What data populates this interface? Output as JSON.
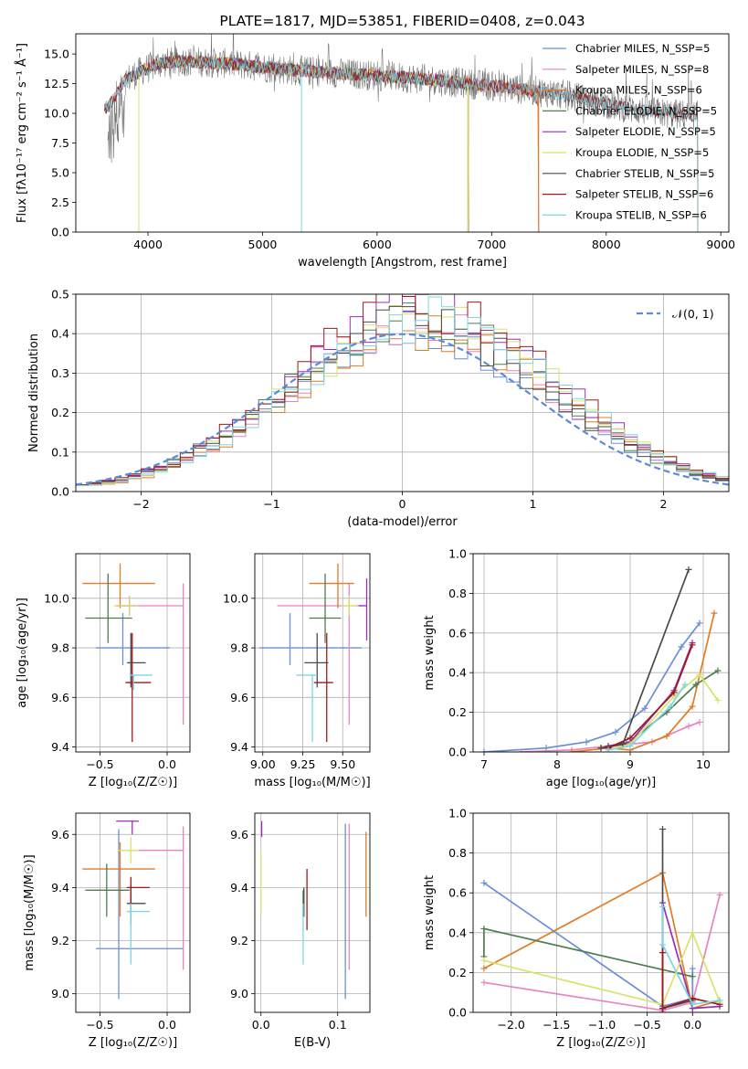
{
  "figure_title": "PLATE=1817, MJD=53851, FIBERID=0408, z=0.043",
  "palette": [
    "#6a8fd8",
    "#e884c0",
    "#e07b28",
    "#4f7d4f",
    "#9a2fb8",
    "#d9e26a",
    "#4a4a4a",
    "#9c1a1a",
    "#7fd6df"
  ],
  "chart_data": [
    {
      "type": "line",
      "panel": "spectrum",
      "title": "PLATE=1817, MJD=53851, FIBERID=0408, z=0.043",
      "xlabel": "wavelength [Angstrom, rest frame]",
      "ylabel": "Flux [fλ10⁻¹⁷ erg cm⁻² s⁻¹ Å⁻¹]",
      "xlim": [
        3370,
        9070
      ],
      "ylim": [
        0,
        16.7
      ],
      "xticks": [
        "4000",
        "5000",
        "6000",
        "7000",
        "8000",
        "9000"
      ],
      "yticks": [
        "0.0",
        "2.5",
        "5.0",
        "7.5",
        "10.0",
        "12.5",
        "15.0"
      ],
      "legend_position": "top-right",
      "legend": [
        "Chabrier MILES, N_SSP=5",
        "Salpeter MILES, N_SSP=8",
        "Kroupa MILES, N_SSP=6",
        "Chabrier ELODIE, N_SSP=5",
        "Salpeter ELODIE, N_SSP=5",
        "Kroupa ELODIE, N_SSP=5",
        "Chabrier STELIB, N_SSP=5",
        "Salpeter STELIB, N_SSP=6",
        "Kroupa STELIB, N_SSP=6"
      ],
      "continuum": {
        "x": [
          3650,
          3800,
          3950,
          4100,
          4300,
          4500,
          4700,
          4900,
          5100,
          5300,
          5500,
          5800,
          6100,
          6400,
          6700,
          7000,
          7300,
          7600,
          7900,
          8200,
          8500,
          8800
        ],
        "y": [
          10.5,
          12.8,
          13.6,
          14.2,
          14.4,
          14.3,
          14.2,
          14.0,
          13.8,
          13.6,
          13.5,
          13.3,
          13.1,
          12.9,
          12.6,
          12.3,
          12.0,
          11.6,
          11.0,
          10.4,
          10.0,
          9.8
        ]
      },
      "series_extent": [
        {
          "name": "Chabrier MILES, N_SSP=5",
          "x_range": [
            3620,
            7410
          ]
        },
        {
          "name": "Salpeter MILES, N_SSP=8",
          "x_range": [
            3620,
            7410
          ]
        },
        {
          "name": "Kroupa MILES, N_SSP=6",
          "x_range": [
            3620,
            7410
          ]
        },
        {
          "name": "Chabrier ELODIE, N_SSP=5",
          "x_range": [
            3900,
            6800
          ]
        },
        {
          "name": "Salpeter ELODIE, N_SSP=5",
          "x_range": [
            3900,
            6800
          ]
        },
        {
          "name": "Kroupa ELODIE, N_SSP=5",
          "x_range": [
            3900,
            6800
          ]
        },
        {
          "name": "Chabrier STELIB, N_SSP=5",
          "x_range": [
            3620,
            8800
          ]
        },
        {
          "name": "Salpeter STELIB, N_SSP=6",
          "x_range": [
            3620,
            8800
          ]
        },
        {
          "name": "Kroupa STELIB, N_SSP=6",
          "x_range": [
            3620,
            8800
          ]
        }
      ]
    },
    {
      "type": "histogram",
      "panel": "residuals",
      "xlabel": "(data-model)/error",
      "ylabel": "Normed distribution",
      "xlim": [
        -2.5,
        2.5
      ],
      "ylim": [
        0,
        0.5
      ],
      "xticks": [
        "−2",
        "−1",
        "0",
        "1",
        "2"
      ],
      "yticks": [
        "0.0",
        "0.1",
        "0.2",
        "0.3",
        "0.4",
        "0.5"
      ],
      "legend_position": "top-right",
      "reference_curve": {
        "name": "N(0,1)",
        "label": "𝒩(0, 1)",
        "mean": 0,
        "sigma": 1,
        "style": "dashed"
      },
      "bin_width": 0.1,
      "series": [
        {
          "name": "Chabrier MILES, N_SSP=5",
          "peak": 0.41
        },
        {
          "name": "Salpeter MILES, N_SSP=8",
          "peak": 0.42
        },
        {
          "name": "Kroupa MILES, N_SSP=6",
          "peak": 0.41
        },
        {
          "name": "Chabrier ELODIE, N_SSP=5",
          "peak": 0.43
        },
        {
          "name": "Salpeter ELODIE, N_SSP=5",
          "peak": 0.47
        },
        {
          "name": "Kroupa ELODIE, N_SSP=5",
          "peak": 0.45
        },
        {
          "name": "Chabrier STELIB, N_SSP=5",
          "peak": 0.42
        },
        {
          "name": "Salpeter STELIB, N_SSP=6",
          "peak": 0.47
        },
        {
          "name": "Kroupa STELIB, N_SSP=6",
          "peak": 0.44
        }
      ]
    },
    {
      "type": "errorbar",
      "panel": "age-vs-Z",
      "xlabel": "Z [log₁₀(Z/Z☉)]",
      "ylabel": "age  [log₁₀(age/yr)]",
      "xlim": [
        -0.68,
        0.17
      ],
      "ylim": [
        9.38,
        10.18
      ],
      "xticks": [
        "−0.5",
        "0.0"
      ],
      "yticks": [
        "9.4",
        "9.6",
        "9.8",
        "10.0"
      ],
      "points": [
        {
          "series": 0,
          "x": -0.33,
          "y": 9.8,
          "xerr": [
            0.2,
            0.35
          ],
          "yerr": [
            0.07,
            0.14
          ]
        },
        {
          "series": 1,
          "x": 0.12,
          "y": 9.97,
          "xerr": [
            0.45,
            0.0
          ],
          "yerr": [
            0.48,
            0.09
          ]
        },
        {
          "series": 2,
          "x": -0.35,
          "y": 10.06,
          "xerr": [
            0.28,
            0.26
          ],
          "yerr": [
            0.1,
            0.08
          ]
        },
        {
          "series": 3,
          "x": -0.44,
          "y": 9.92,
          "xerr": [
            0.17,
            0.18
          ],
          "yerr": [
            0.1,
            0.18
          ]
        },
        {
          "series": 4,
          "x": -0.28,
          "y": 9.97,
          "xerr": [
            0.1,
            0.05
          ],
          "yerr": [
            0.04,
            0.04
          ]
        },
        {
          "series": 5,
          "x": -0.28,
          "y": 9.97,
          "xerr": [
            0.12,
            0.06
          ],
          "yerr": [
            0.04,
            0.04
          ]
        },
        {
          "series": 6,
          "x": -0.27,
          "y": 9.74,
          "xerr": [
            0.03,
            0.11
          ],
          "yerr": [
            0.1,
            0.12
          ]
        },
        {
          "series": 7,
          "x": -0.26,
          "y": 9.66,
          "xerr": [
            0.05,
            0.14
          ],
          "yerr": [
            0.24,
            0.2
          ]
        },
        {
          "series": 8,
          "x": -0.25,
          "y": 9.69,
          "xerr": [
            0.03,
            0.14
          ],
          "yerr": [
            0.06,
            0.0
          ]
        }
      ]
    },
    {
      "type": "errorbar",
      "panel": "age-vs-mass",
      "xlabel": "mass [log₁₀(M/M☉)]",
      "ylabel": "",
      "xlim": [
        8.95,
        9.67
      ],
      "ylim": [
        9.38,
        10.18
      ],
      "xticks": [
        "9.00",
        "9.25",
        "9.50"
      ],
      "yticks": [
        "9.4",
        "9.6",
        "9.8",
        "10.0"
      ],
      "points": [
        {
          "series": 0,
          "x": 9.17,
          "y": 9.8,
          "xerr": [
            0.19,
            0.45
          ],
          "yerr": [
            0.07,
            0.14
          ]
        },
        {
          "series": 1,
          "x": 9.54,
          "y": 9.97,
          "xerr": [
            0.45,
            0.09
          ],
          "yerr": [
            0.48,
            0.09
          ]
        },
        {
          "series": 2,
          "x": 9.47,
          "y": 10.06,
          "xerr": [
            0.18,
            0.1
          ],
          "yerr": [
            0.1,
            0.08
          ]
        },
        {
          "series": 3,
          "x": 9.39,
          "y": 9.92,
          "xerr": [
            0.1,
            0.1
          ],
          "yerr": [
            0.1,
            0.18
          ]
        },
        {
          "series": 4,
          "x": 9.65,
          "y": 9.97,
          "xerr": [
            0.05,
            0.0
          ],
          "yerr": [
            0.14,
            0.11
          ]
        },
        {
          "series": 5,
          "x": 9.54,
          "y": 9.97,
          "xerr": [
            0.05,
            0.05
          ],
          "yerr": [
            0.04,
            0.04
          ]
        },
        {
          "series": 6,
          "x": 9.34,
          "y": 9.74,
          "xerr": [
            0.08,
            0.07
          ],
          "yerr": [
            0.1,
            0.12
          ]
        },
        {
          "series": 7,
          "x": 9.4,
          "y": 9.66,
          "xerr": [
            0.08,
            0.04
          ],
          "yerr": [
            0.24,
            0.2
          ]
        },
        {
          "series": 8,
          "x": 9.31,
          "y": 9.69,
          "xerr": [
            0.1,
            0.03
          ],
          "yerr": [
            0.27,
            0.0
          ]
        }
      ]
    },
    {
      "type": "line",
      "panel": "mass-weight-vs-age",
      "xlabel": "age  [log₁₀(age/yr)]",
      "ylabel": "mass weight",
      "xlim": [
        6.85,
        10.35
      ],
      "ylim": [
        0,
        1.0
      ],
      "xticks": [
        "7",
        "8",
        "9",
        "10"
      ],
      "yticks": [
        "0.0",
        "0.2",
        "0.4",
        "0.6",
        "0.8",
        "1.0"
      ],
      "series": [
        {
          "index": 0,
          "x": [
            7.0,
            7.85,
            8.4,
            8.8,
            9.2,
            9.7,
            9.95
          ],
          "y": [
            0.0,
            0.02,
            0.05,
            0.1,
            0.22,
            0.53,
            0.65
          ]
        },
        {
          "index": 1,
          "x": [
            7.5,
            8.2,
            8.7,
            9.3,
            9.8,
            9.95
          ],
          "y": [
            0.0,
            0.01,
            0.03,
            0.05,
            0.13,
            0.15
          ]
        },
        {
          "index": 2,
          "x": [
            8.2,
            8.7,
            9.0,
            9.5,
            9.85,
            10.15
          ],
          "y": [
            0.0,
            0.02,
            0.01,
            0.08,
            0.23,
            0.7
          ]
        },
        {
          "index": 3,
          "x": [
            8.6,
            8.95,
            9.5,
            9.9,
            10.2
          ],
          "y": [
            0.02,
            0.04,
            0.2,
            0.34,
            0.41
          ]
        },
        {
          "index": 4,
          "x": [
            8.7,
            9.0,
            9.6,
            9.85
          ],
          "y": [
            0.03,
            0.05,
            0.31,
            0.55
          ]
        },
        {
          "index": 5,
          "x": [
            8.7,
            9.0,
            9.6,
            9.95,
            10.2
          ],
          "y": [
            0.01,
            0.04,
            0.28,
            0.39,
            0.26
          ]
        },
        {
          "index": 6,
          "x": [
            8.6,
            8.9,
            9.8
          ],
          "y": [
            0.02,
            0.04,
            0.92
          ]
        },
        {
          "index": 7,
          "x": [
            8.7,
            9.0,
            9.6,
            9.85
          ],
          "y": [
            0.02,
            0.07,
            0.3,
            0.54
          ]
        },
        {
          "index": 8,
          "x": [
            8.7,
            9.0,
            9.55,
            9.75
          ],
          "y": [
            0.01,
            0.03,
            0.23,
            0.34
          ]
        }
      ]
    },
    {
      "type": "errorbar",
      "panel": "mass-vs-Z",
      "xlabel": "Z [log₁₀(Z/Z☉)]",
      "ylabel": "mass [log₁₀(M/M☉)]",
      "xlim": [
        -0.68,
        0.17
      ],
      "ylim": [
        8.93,
        9.68
      ],
      "xticks": [
        "−0.5",
        "0.0"
      ],
      "yticks": [
        "9.0",
        "9.2",
        "9.4",
        "9.6"
      ],
      "points": [
        {
          "series": 0,
          "x": -0.36,
          "y": 9.17,
          "xerr": [
            0.17,
            0.48
          ],
          "yerr": [
            0.19,
            0.45
          ]
        },
        {
          "series": 1,
          "x": 0.12,
          "y": 9.54,
          "xerr": [
            0.42,
            0.0
          ],
          "yerr": [
            0.45,
            0.09
          ]
        },
        {
          "series": 2,
          "x": -0.35,
          "y": 9.47,
          "xerr": [
            0.28,
            0.26
          ],
          "yerr": [
            0.18,
            0.1
          ]
        },
        {
          "series": 3,
          "x": -0.45,
          "y": 9.39,
          "xerr": [
            0.16,
            0.17
          ],
          "yerr": [
            0.1,
            0.1
          ]
        },
        {
          "series": 4,
          "x": -0.26,
          "y": 9.65,
          "xerr": [
            0.12,
            0.05
          ],
          "yerr": [
            0.05,
            0.0
          ]
        },
        {
          "series": 5,
          "x": -0.27,
          "y": 9.54,
          "xerr": [
            0.1,
            0.06
          ],
          "yerr": [
            0.05,
            0.05
          ]
        },
        {
          "series": 6,
          "x": -0.27,
          "y": 9.34,
          "xerr": [
            0.03,
            0.11
          ],
          "yerr": [
            0.08,
            0.07
          ]
        },
        {
          "series": 7,
          "x": -0.27,
          "y": 9.4,
          "xerr": [
            0.03,
            0.14
          ],
          "yerr": [
            0.08,
            0.04
          ]
        },
        {
          "series": 8,
          "x": -0.27,
          "y": 9.31,
          "xerr": [
            0.03,
            0.14
          ],
          "yerr": [
            0.2,
            0.03
          ]
        }
      ]
    },
    {
      "type": "errorbar",
      "panel": "mass-vs-EBV",
      "xlabel": "E(B-V)",
      "ylabel": "",
      "xlim": [
        -0.008,
        0.142
      ],
      "ylim": [
        8.93,
        9.68
      ],
      "xticks": [
        "0.0",
        "0.1"
      ],
      "yticks": [
        "9.0",
        "9.2",
        "9.4",
        "9.6"
      ],
      "points": [
        {
          "series": 0,
          "x": 0.11,
          "y": 9.17,
          "xerr": [
            0,
            0
          ],
          "yerr": [
            0.19,
            0.47
          ]
        },
        {
          "series": 1,
          "x": 0.115,
          "y": 9.54,
          "xerr": [
            0,
            0
          ],
          "yerr": [
            0.45,
            0.1
          ]
        },
        {
          "series": 2,
          "x": 0.137,
          "y": 9.47,
          "xerr": [
            0,
            0
          ],
          "yerr": [
            0.18,
            0.14
          ]
        },
        {
          "series": 3,
          "x": 0.055,
          "y": 9.39,
          "xerr": [
            0,
            0
          ],
          "yerr": [
            0.1,
            0.0
          ]
        },
        {
          "series": 4,
          "x": 0.001,
          "y": 9.65,
          "xerr": [
            0,
            0
          ],
          "yerr": [
            0.06,
            0.0
          ]
        },
        {
          "series": 5,
          "x": 0.0,
          "y": 9.54,
          "xerr": [
            0,
            0
          ],
          "yerr": [
            0.24,
            0.0
          ]
        },
        {
          "series": 6,
          "x": 0.056,
          "y": 9.34,
          "xerr": [
            0,
            0
          ],
          "yerr": [
            0.05,
            0.06
          ]
        },
        {
          "series": 7,
          "x": 0.06,
          "y": 9.4,
          "xerr": [
            0,
            0
          ],
          "yerr": [
            0.16,
            0.07
          ]
        },
        {
          "series": 8,
          "x": 0.055,
          "y": 9.31,
          "xerr": [
            0,
            0
          ],
          "yerr": [
            0.2,
            0.03
          ]
        }
      ]
    },
    {
      "type": "line",
      "panel": "mass-weight-vs-Z",
      "xlabel": "Z [log₁₀(Z/Z☉)]",
      "ylabel": "mass weight",
      "xlim": [
        -2.42,
        0.4
      ],
      "ylim": [
        0,
        1.0
      ],
      "xticks": [
        "−2.0",
        "−1.5",
        "−1.0",
        "−0.5",
        "0.0"
      ],
      "yticks": [
        "0.0",
        "0.2",
        "0.4",
        "0.6",
        "0.8",
        "1.0"
      ],
      "series": [
        {
          "index": 0,
          "x": [
            -2.3,
            -0.33,
            0.0,
            0.0
          ],
          "y": [
            0.65,
            0.03,
            0.07,
            0.22
          ]
        },
        {
          "index": 1,
          "x": [
            -2.3,
            -0.33,
            0.0,
            0.3
          ],
          "y": [
            0.15,
            0.01,
            0.05,
            0.59
          ]
        },
        {
          "index": 2,
          "x": [
            -2.3,
            -0.33,
            0.0,
            0.3
          ],
          "y": [
            0.22,
            0.7,
            0.02,
            0.06
          ]
        },
        {
          "index": 3,
          "x": [
            -2.3,
            -2.3,
            0.0
          ],
          "y": [
            0.28,
            0.42,
            0.18
          ]
        },
        {
          "index": 4,
          "x": [
            -0.33,
            -0.33,
            0.0,
            0.3
          ],
          "y": [
            0.0,
            0.55,
            0.02,
            0.03
          ]
        },
        {
          "index": 5,
          "x": [
            -2.3,
            -0.33,
            0.0,
            0.3
          ],
          "y": [
            0.26,
            0.04,
            0.4,
            0.05
          ]
        },
        {
          "index": 6,
          "x": [
            -0.33,
            -0.33,
            0.0
          ],
          "y": [
            0.92,
            0.02,
            0.06
          ]
        },
        {
          "index": 7,
          "x": [
            -0.33,
            -0.33,
            0.0,
            0.3
          ],
          "y": [
            0.3,
            0.02,
            0.07,
            0.04
          ]
        },
        {
          "index": 8,
          "x": [
            -0.33,
            -0.33,
            0.0,
            0.3
          ],
          "y": [
            0.53,
            0.34,
            0.04,
            0.06
          ]
        }
      ]
    }
  ]
}
